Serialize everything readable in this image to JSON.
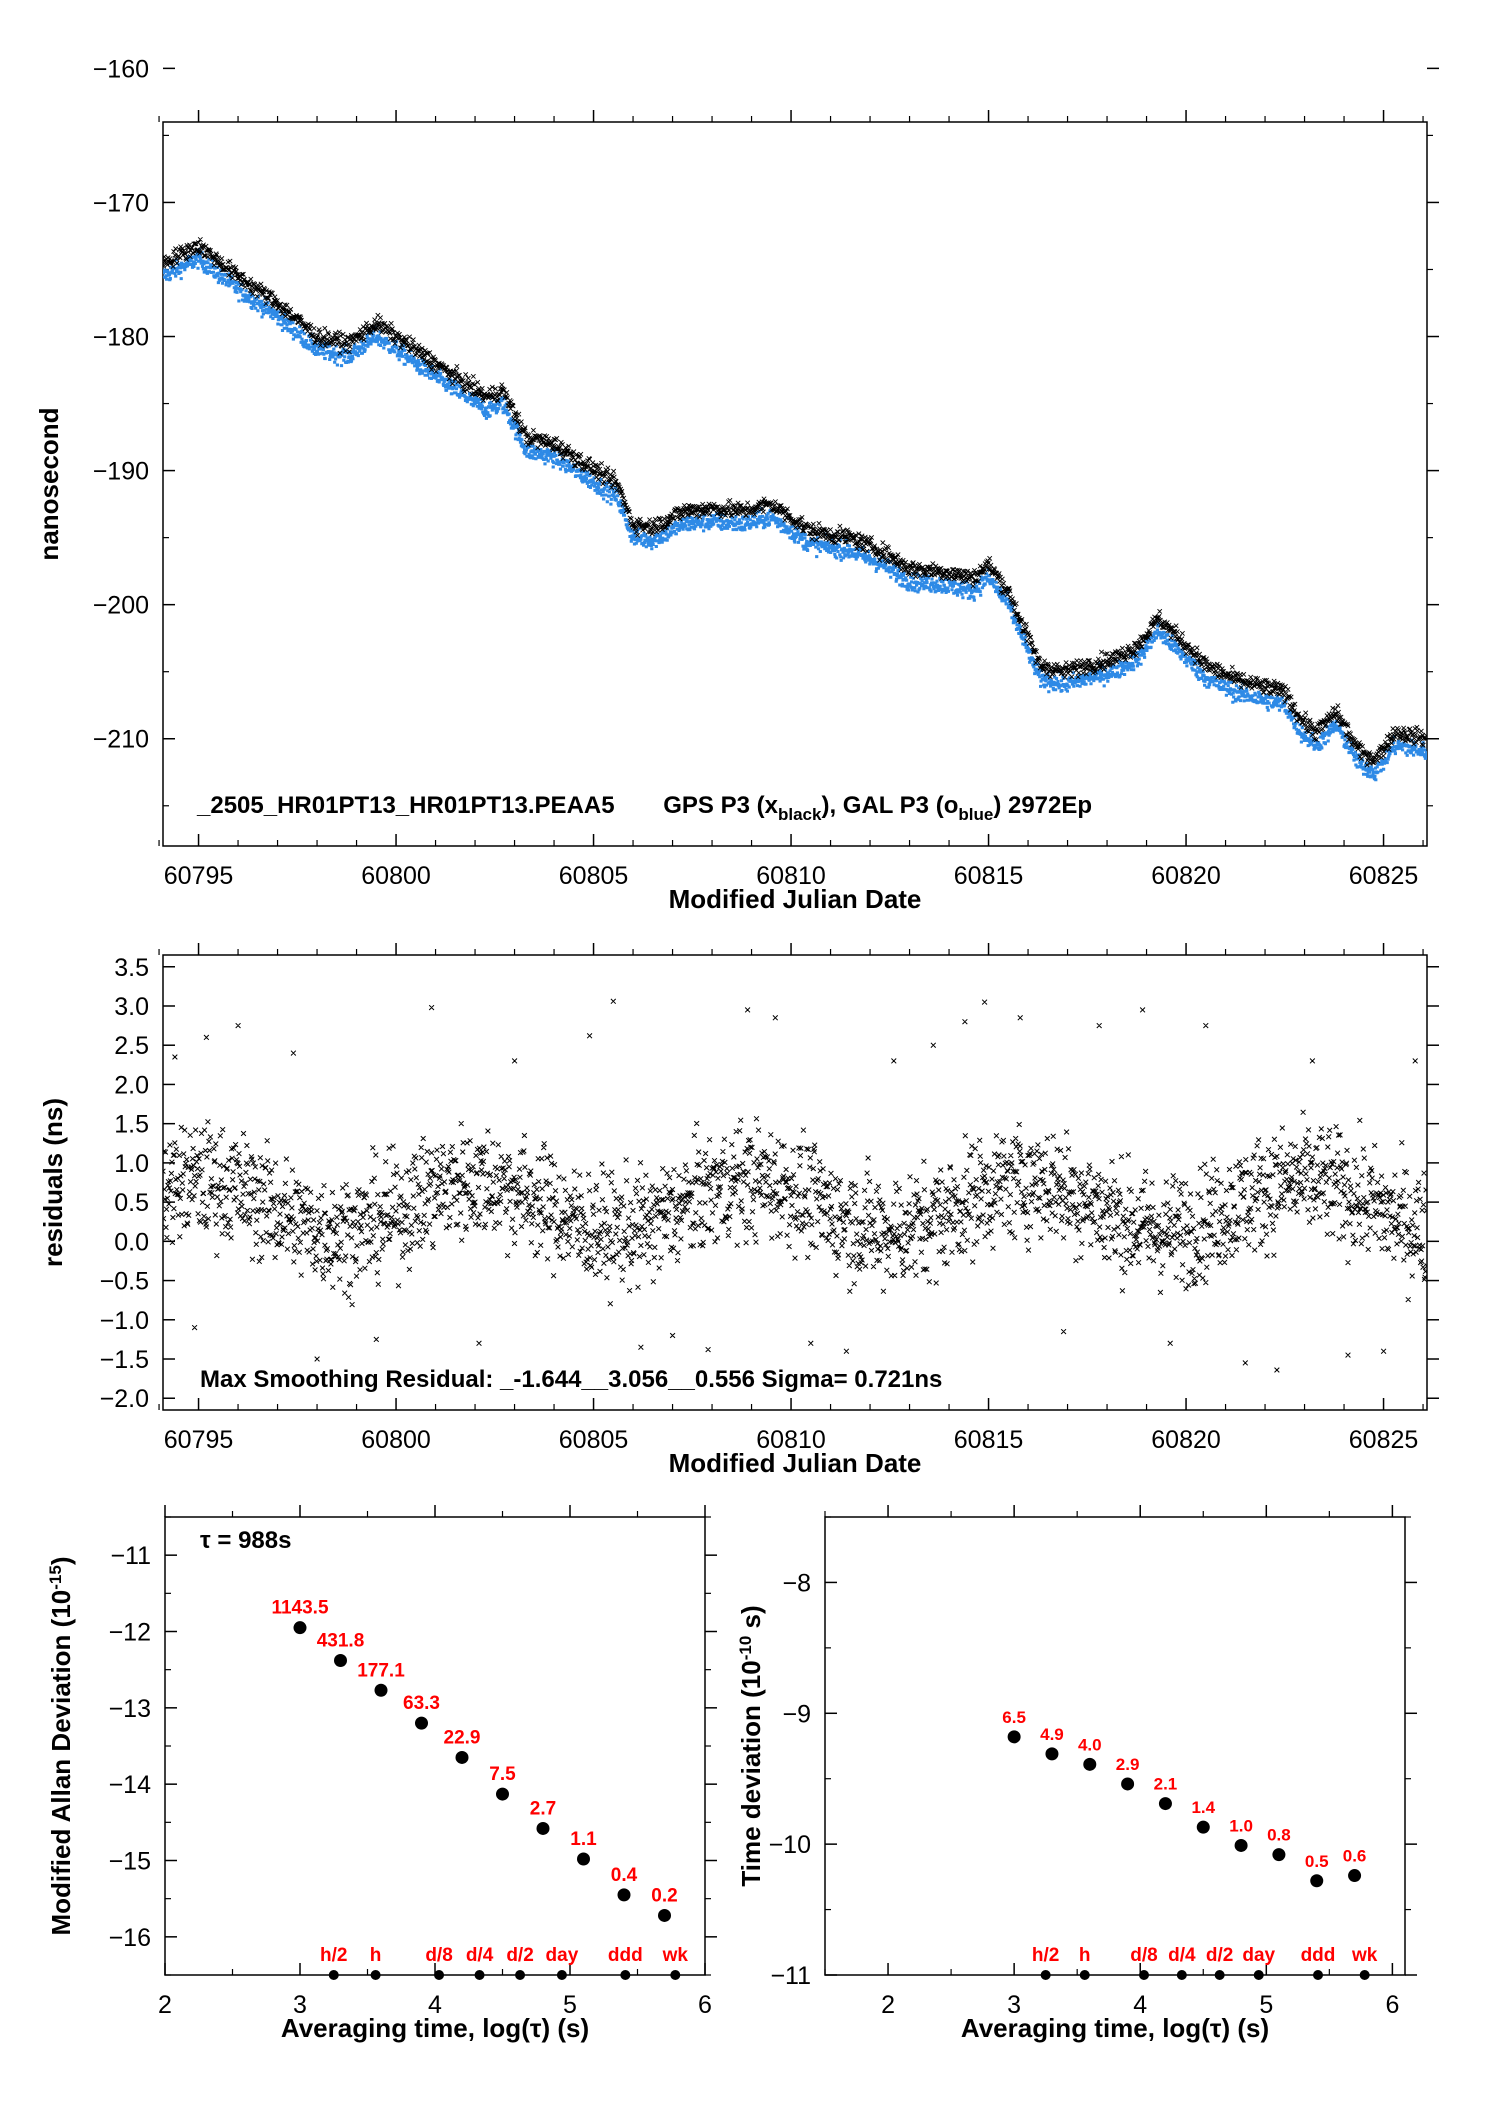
{
  "chart_data": [
    {
      "type": "scatter",
      "xlabel": "Modified Julian Date",
      "ylabel": "nanosecond",
      "xlim": [
        60794.1,
        60826.1
      ],
      "ylim": [
        -218,
        -164
      ],
      "xticks": [
        60795,
        60800,
        60805,
        60810,
        60815,
        60820,
        60825
      ],
      "xtick_labels": [
        "60795",
        "60800",
        "60805",
        "60810",
        "60815",
        "60820",
        "60825"
      ],
      "yticks": [
        -160,
        -170,
        -180,
        -190,
        -200,
        -210
      ],
      "ytick_labels": [
        "−160",
        "−170",
        "−180",
        "−190",
        "−200",
        "−210"
      ],
      "annotation": {
        "main": "_2505_HR01PT13_HR01PT13.PEAA5",
        "gps": "GPS P3 (x",
        "gps_sub": "black",
        "mid": "),  GAL P3 (o",
        "gal_sub": "blue",
        "tail": ")  2972Ep"
      },
      "series": [
        {
          "name": "GPS P3",
          "marker": "x",
          "color": "#000000",
          "x": [
            60794.1,
            60795.0,
            60796.0,
            60797.0,
            60798.0,
            60798.8,
            60799.5,
            60800.5,
            60801.5,
            60802.3,
            60802.7,
            60803.3,
            60804.0,
            60804.8,
            60805.6,
            60806.0,
            60806.5,
            60807.3,
            60808.0,
            60808.8,
            60809.5,
            60810.5,
            60811.5,
            60812.3,
            60813.0,
            60813.8,
            60814.6,
            60815.0,
            60815.5,
            60816.3,
            60816.9,
            60817.5,
            60818.2,
            60818.8,
            60819.3,
            60820.0,
            60820.5,
            60821.2,
            60821.8,
            60822.5,
            60822.9,
            60823.3,
            60823.8,
            60824.4,
            60824.8,
            60825.3,
            60826.1
          ],
          "y": [
            -174.5,
            -173.2,
            -175.5,
            -177.5,
            -180.0,
            -180.5,
            -179.0,
            -181.0,
            -183.0,
            -184.5,
            -184.0,
            -187.5,
            -188.0,
            -189.5,
            -191.0,
            -194.0,
            -194.2,
            -193.0,
            -192.8,
            -193.0,
            -192.5,
            -194.5,
            -195.0,
            -196.0,
            -197.3,
            -197.5,
            -198.0,
            -197.0,
            -199.0,
            -204.5,
            -205.0,
            -204.5,
            -204.0,
            -203.0,
            -201.0,
            -203.0,
            -204.5,
            -205.5,
            -206.0,
            -206.5,
            -208.5,
            -209.5,
            -208.0,
            -211.0,
            -211.5,
            -209.5,
            -210.0
          ]
        },
        {
          "name": "GAL P3",
          "marker": "o",
          "color": "#2e8ae6",
          "x": [
            60794.1,
            60795.0,
            60796.0,
            60797.0,
            60798.0,
            60798.8,
            60799.5,
            60800.5,
            60801.5,
            60802.3,
            60802.7,
            60803.3,
            60804.0,
            60804.8,
            60805.6,
            60806.0,
            60806.5,
            60807.3,
            60808.0,
            60808.8,
            60809.5,
            60810.5,
            60811.5,
            60812.3,
            60813.0,
            60813.8,
            60814.6,
            60815.0,
            60815.5,
            60816.3,
            60816.9,
            60817.5,
            60818.2,
            60818.8,
            60819.3,
            60820.0,
            60820.5,
            60821.2,
            60821.8,
            60822.5,
            60822.9,
            60823.3,
            60823.8,
            60824.4,
            60824.8,
            60825.3,
            60826.1
          ],
          "y": [
            -175.5,
            -174.2,
            -176.5,
            -178.5,
            -181.0,
            -181.5,
            -180.0,
            -182.0,
            -184.0,
            -185.5,
            -185.0,
            -188.5,
            -189.0,
            -190.5,
            -192.0,
            -195.0,
            -195.2,
            -194.0,
            -193.8,
            -194.0,
            -193.5,
            -195.5,
            -196.0,
            -197.0,
            -198.3,
            -198.5,
            -199.0,
            -198.0,
            -200.0,
            -205.5,
            -206.0,
            -205.5,
            -205.0,
            -204.0,
            -202.0,
            -204.0,
            -205.5,
            -206.5,
            -207.0,
            -207.5,
            -209.5,
            -210.5,
            -209.0,
            -212.0,
            -212.5,
            -210.5,
            -211.0
          ]
        }
      ]
    },
    {
      "type": "scatter",
      "xlabel": "Modified Julian Date",
      "ylabel": "residuals (ns)",
      "xlim": [
        60794.1,
        60826.1
      ],
      "ylim": [
        -2.15,
        3.65
      ],
      "xticks": [
        60795,
        60800,
        60805,
        60810,
        60815,
        60820,
        60825
      ],
      "xtick_labels": [
        "60795",
        "60800",
        "60805",
        "60810",
        "60815",
        "60820",
        "60825"
      ],
      "yticks": [
        3.5,
        3.0,
        2.5,
        2.0,
        1.5,
        1.0,
        0.5,
        0.0,
        -0.5,
        -1.0,
        -1.5,
        -2.0
      ],
      "ytick_labels": [
        "3.5",
        "3.0",
        "2.5",
        "2.0",
        "1.5",
        "1.0",
        "0.5",
        "0.0",
        "−0.5",
        "−1.0",
        "−1.5",
        "−2.0"
      ],
      "annotation": "Max Smoothing Residual: _-1.644__3.056__0.556  Sigma= 0.721ns",
      "series": [
        {
          "name": "residuals",
          "marker": "x",
          "color": "#000000",
          "x": [
            60794.4,
            60794.9,
            60795.2,
            60796.0,
            60797.4,
            60798.0,
            60799.5,
            60800.9,
            60802.1,
            60803.0,
            60804.9,
            60805.5,
            60806.2,
            60807.0,
            60807.9,
            60808.9,
            60809.6,
            60810.5,
            60811.4,
            60812.6,
            60813.6,
            60814.4,
            60814.9,
            60815.8,
            60816.9,
            60817.8,
            60818.9,
            60819.6,
            60820.5,
            60821.5,
            60822.3,
            60823.2,
            60824.1,
            60825.0,
            60825.8
          ],
          "y": [
            2.35,
            -1.1,
            2.6,
            2.75,
            2.4,
            -1.5,
            -1.25,
            2.98,
            -1.3,
            2.3,
            2.62,
            3.06,
            -1.35,
            -1.2,
            -1.38,
            2.95,
            2.85,
            -1.3,
            -1.4,
            2.3,
            2.5,
            2.8,
            3.05,
            2.85,
            -1.15,
            2.75,
            2.95,
            -1.3,
            2.75,
            -1.55,
            -1.64,
            2.3,
            -1.45,
            -1.4,
            2.3
          ]
        }
      ]
    },
    {
      "type": "scatter",
      "xlabel": "Averaging time, log(τ) (s)",
      "ylabel": "Modified Allan Deviation (10",
      "ylabel_sup": "-15",
      "ylabel_tail": ")",
      "note": "τ = 988s",
      "xlim": [
        2,
        6
      ],
      "ylim": [
        -16.5,
        -10.5
      ],
      "xticks": [
        2,
        3,
        4,
        5,
        6
      ],
      "xtick_labels": [
        "2",
        "3",
        "4",
        "5",
        "6"
      ],
      "yticks": [
        -11,
        -12,
        -13,
        -14,
        -15,
        -16
      ],
      "ytick_labels": [
        "−11",
        "−12",
        "−13",
        "−14",
        "−15",
        "−16"
      ],
      "x": [
        3.0,
        3.3,
        3.6,
        3.9,
        4.2,
        4.5,
        4.8,
        5.1,
        5.4,
        5.7
      ],
      "y": [
        -11.95,
        -12.38,
        -12.77,
        -13.2,
        -13.65,
        -14.13,
        -14.58,
        -14.98,
        -15.45,
        -15.72
      ],
      "labels": [
        "1143.5",
        "431.8",
        "177.1",
        "63.3",
        "22.9",
        "7.5",
        "2.7",
        "1.1",
        "0.4",
        "0.2"
      ],
      "markers": [
        {
          "x": 3.25,
          "label": "h/2"
        },
        {
          "x": 3.56,
          "label": "h"
        },
        {
          "x": 4.03,
          "label": "d/8"
        },
        {
          "x": 4.33,
          "label": "d/4"
        },
        {
          "x": 4.63,
          "label": "d/2"
        },
        {
          "x": 4.94,
          "label": "day"
        },
        {
          "x": 5.41,
          "label": "ddd"
        },
        {
          "x": 5.78,
          "label": "wk"
        }
      ]
    },
    {
      "type": "scatter",
      "xlabel": "Averaging time, log(τ) (s)",
      "ylabel": "Time deviation (10",
      "ylabel_sup": "-10",
      "ylabel_tail": " s)",
      "xlim": [
        1.5,
        6.1
      ],
      "ylim": [
        -11,
        -7.5
      ],
      "xticks": [
        2,
        3,
        4,
        5,
        6
      ],
      "xtick_labels": [
        "2",
        "3",
        "4",
        "5",
        "6"
      ],
      "yticks": [
        -8,
        -9,
        -10,
        -11
      ],
      "ytick_labels": [
        "−8",
        "−9",
        "−10",
        "−11"
      ],
      "x": [
        3.0,
        3.3,
        3.6,
        3.9,
        4.2,
        4.5,
        4.8,
        5.1,
        5.4,
        5.7
      ],
      "y": [
        -9.18,
        -9.31,
        -9.39,
        -9.54,
        -9.69,
        -9.87,
        -10.01,
        -10.08,
        -10.28,
        -10.24
      ],
      "labels": [
        "6.5",
        "4.9",
        "4.0",
        "2.9",
        "2.1",
        "1.4",
        "1.0",
        "0.8",
        "0.5",
        "0.6"
      ],
      "markers": [
        {
          "x": 3.25,
          "label": "h/2"
        },
        {
          "x": 3.56,
          "label": "h"
        },
        {
          "x": 4.03,
          "label": "d/8"
        },
        {
          "x": 4.33,
          "label": "d/4"
        },
        {
          "x": 4.63,
          "label": "d/2"
        },
        {
          "x": 4.94,
          "label": "day"
        },
        {
          "x": 5.41,
          "label": "ddd"
        },
        {
          "x": 5.78,
          "label": "wk"
        }
      ]
    }
  ]
}
